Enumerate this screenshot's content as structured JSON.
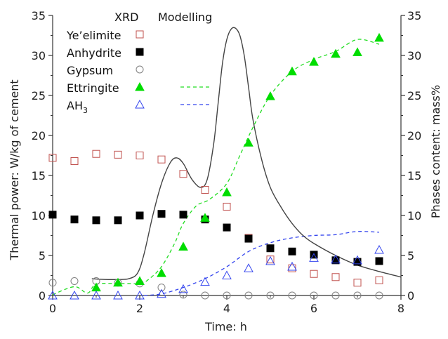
{
  "chart_data": {
    "type": "scatter",
    "xlabel": "Time: h",
    "ylabel_left": "Thermal power: W/kg of cement",
    "ylabel_right": "Phases content: mass%",
    "xlim": [
      0,
      8
    ],
    "ylim_left": [
      0,
      35
    ],
    "ylim_right": [
      0,
      35
    ],
    "x_ticks": [
      0,
      2,
      4,
      6,
      8
    ],
    "y_ticks": [
      0,
      5,
      10,
      15,
      20,
      25,
      30,
      35
    ],
    "legend": {
      "header_xrd": "XRD",
      "header_model": "Modelling",
      "placement": "top-left",
      "entries": [
        "Ye’elimite",
        "Anhydrite",
        "Gypsum",
        "Ettringite",
        "AH"
      ],
      "ah_subscript": "3"
    },
    "thermal_power": {
      "color": "#444444",
      "x": [
        0.9,
        1.2,
        1.5,
        1.75,
        1.95,
        2.1,
        2.3,
        2.5,
        2.7,
        2.85,
        3.0,
        3.2,
        3.4,
        3.55,
        3.7,
        3.8,
        3.9,
        4.0,
        4.1,
        4.2,
        4.3,
        4.4,
        4.5,
        4.6,
        4.8,
        5.0,
        5.25,
        5.5,
        5.75,
        6.0,
        6.5,
        7.0,
        7.5,
        8.0
      ],
      "y": [
        2.1,
        2.0,
        2.0,
        2.1,
        2.8,
        5.2,
        10.0,
        14.0,
        16.6,
        17.2,
        16.5,
        14.5,
        13.5,
        14.5,
        19.0,
        24.0,
        29.0,
        32.0,
        33.3,
        33.4,
        32.5,
        30.0,
        26.0,
        22.0,
        17.0,
        13.5,
        11.0,
        9.0,
        7.5,
        6.5,
        5.0,
        3.8,
        3.0,
        2.3
      ]
    },
    "series": [
      {
        "name": "Ye’elimite",
        "marker": "square-open",
        "color": "#c0504d",
        "x": [
          0,
          0.5,
          1.0,
          1.5,
          2.0,
          2.5,
          3.0,
          3.5,
          4.0,
          4.5,
          5.0,
          5.5,
          6.0,
          6.5,
          7.0,
          7.5
        ],
        "y": [
          17.2,
          16.8,
          17.7,
          17.6,
          17.5,
          17.0,
          15.2,
          13.2,
          11.1,
          7.2,
          4.5,
          3.4,
          2.7,
          2.3,
          1.6,
          1.9
        ]
      },
      {
        "name": "Anhydrite",
        "marker": "square-filled",
        "color": "#000000",
        "x": [
          0,
          0.5,
          1.0,
          1.5,
          2.0,
          2.5,
          3.0,
          3.5,
          4.0,
          4.5,
          5.0,
          5.5,
          6.0,
          6.5,
          7.0,
          7.5
        ],
        "y": [
          10.1,
          9.5,
          9.4,
          9.4,
          10.0,
          10.2,
          10.1,
          9.5,
          8.5,
          7.1,
          5.9,
          5.5,
          5.1,
          4.4,
          4.2,
          4.3
        ]
      },
      {
        "name": "Gypsum",
        "marker": "circle-open",
        "color": "#808080",
        "x": [
          0,
          0.5,
          1.0,
          1.5,
          2.0,
          2.5,
          3.0,
          3.5,
          4.0,
          4.5,
          5.0,
          5.5,
          6.0,
          6.5,
          7.0,
          7.5
        ],
        "y": [
          1.6,
          1.8,
          1.8,
          1.6,
          1.5,
          1.0,
          0.1,
          0.0,
          0.0,
          0.0,
          0.0,
          0.0,
          0.0,
          0.0,
          0.0,
          0.0
        ]
      },
      {
        "name": "Ettringite",
        "marker": "triangle-filled",
        "color": "#00dd00",
        "x": [
          1.0,
          1.5,
          2.0,
          2.5,
          3.0,
          3.5,
          4.0,
          4.5,
          5.0,
          5.5,
          6.0,
          6.5,
          7.0,
          7.5
        ],
        "y": [
          1.0,
          1.6,
          1.8,
          2.8,
          6.1,
          9.7,
          12.9,
          19.1,
          24.9,
          28.0,
          29.2,
          30.2,
          30.4,
          32.2
        ]
      },
      {
        "name": "AH3",
        "marker": "triangle-open",
        "color": "#3344ee",
        "x": [
          0,
          0.5,
          1.0,
          1.5,
          2.0,
          2.5,
          3.0,
          3.5,
          4.0,
          4.5,
          5.0,
          5.5,
          6.0,
          6.5,
          7.0,
          7.5
        ],
        "y": [
          0.0,
          0.0,
          0.0,
          0.0,
          0.0,
          0.2,
          0.8,
          1.7,
          2.5,
          3.4,
          4.3,
          3.6,
          4.7,
          4.5,
          4.4,
          5.7
        ]
      }
    ],
    "model_lines": [
      {
        "name": "Ettringite",
        "color": "#22dd22",
        "x": [
          0,
          0.5,
          0.8,
          1.0,
          1.5,
          2.0,
          2.2,
          2.5,
          2.8,
          3.0,
          3.3,
          3.6,
          4.0,
          4.3,
          4.6,
          5.0,
          5.5,
          6.0,
          6.5,
          7.0,
          7.5
        ],
        "y": [
          0.1,
          1.1,
          0.3,
          1.4,
          1.5,
          1.5,
          2.0,
          3.6,
          6.5,
          9.0,
          11.2,
          12.0,
          14.0,
          17.5,
          21.0,
          25.0,
          28.0,
          29.5,
          30.5,
          32.0,
          31.4
        ]
      },
      {
        "name": "AH3",
        "color": "#3344ee",
        "x": [
          2.1,
          2.5,
          3.0,
          3.5,
          4.0,
          4.5,
          5.0,
          5.5,
          6.0,
          6.5,
          7.0,
          7.5
        ],
        "y": [
          0.0,
          0.2,
          1.0,
          2.1,
          3.6,
          5.5,
          6.6,
          7.2,
          7.5,
          7.6,
          8.0,
          7.9
        ]
      }
    ]
  }
}
